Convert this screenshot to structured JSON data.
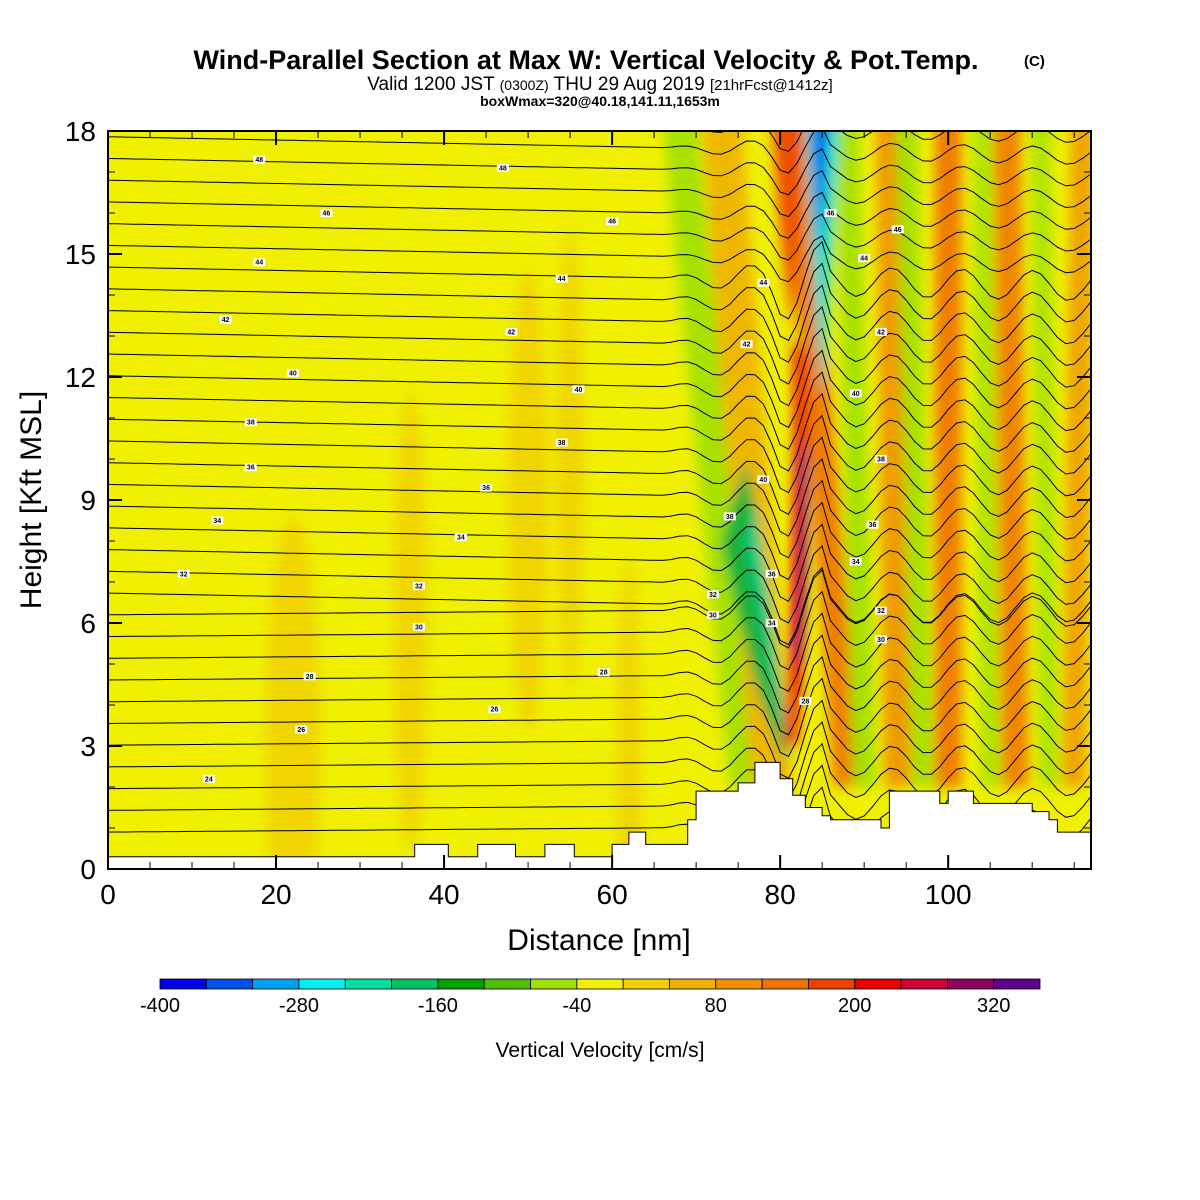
{
  "chart_data": {
    "type": "heatmap",
    "title": "Wind-Parallel Section at Max W: Vertical Velocity & Pot.Temp.",
    "title_mark": "(C)",
    "subtitle": {
      "valid": "Valid 1200 JST",
      "utc": "(0300Z)",
      "date": "THU 29 Aug 2019",
      "fcst": "[21hrFcst@1412z]"
    },
    "subtitle2": "boxWmax=320@40.18,141.11,1653m",
    "xlabel": "Distance [nm]",
    "ylabel": "Height [Kft MSL]",
    "xlim": [
      0,
      117
    ],
    "ylim": [
      0,
      18
    ],
    "xticks": [
      0,
      20,
      40,
      60,
      80,
      100
    ],
    "yticks": [
      0,
      3,
      6,
      9,
      12,
      15,
      18
    ],
    "colorbar": {
      "label": "Vertical Velocity [cm/s]",
      "tick_labels": [
        "-400",
        "-280",
        "-160",
        "-40",
        "80",
        "200",
        "320"
      ],
      "tick_values": [
        -400,
        -280,
        -160,
        -40,
        80,
        200,
        320
      ],
      "colors": [
        "#0000f0",
        "#0050f0",
        "#00a0f0",
        "#00f0f0",
        "#00e0a0",
        "#00c060",
        "#00a000",
        "#50c000",
        "#a0e000",
        "#f0f000",
        "#f0d000",
        "#f0b000",
        "#f09000",
        "#f07000",
        "#f04000",
        "#f00000",
        "#d00030",
        "#900060",
        "#600090"
      ]
    },
    "velocity_features": [
      {
        "x": 82.5,
        "y": 8,
        "value": 320
      },
      {
        "x": 84.5,
        "y": 16,
        "value": -380
      },
      {
        "x": 78,
        "y": 6,
        "value": -180
      },
      {
        "x": 72,
        "y": 15,
        "value": -60
      }
    ],
    "theta_contour_labels": [
      {
        "x": 12,
        "y": 2.2,
        "text": "24"
      },
      {
        "x": 23,
        "y": 3.4,
        "text": "26"
      },
      {
        "x": 24,
        "y": 4.7,
        "text": "28"
      },
      {
        "x": 46,
        "y": 3.9,
        "text": "26"
      },
      {
        "x": 59,
        "y": 4.8,
        "text": "28"
      },
      {
        "x": 37,
        "y": 5.9,
        "text": "30"
      },
      {
        "x": 37,
        "y": 6.9,
        "text": "32"
      },
      {
        "x": 9,
        "y": 7.2,
        "text": "32"
      },
      {
        "x": 13,
        "y": 8.5,
        "text": "34"
      },
      {
        "x": 42,
        "y": 8.1,
        "text": "34"
      },
      {
        "x": 17,
        "y": 9.8,
        "text": "36"
      },
      {
        "x": 45,
        "y": 9.3,
        "text": "36"
      },
      {
        "x": 17,
        "y": 10.9,
        "text": "38"
      },
      {
        "x": 54,
        "y": 10.4,
        "text": "38"
      },
      {
        "x": 22,
        "y": 12.1,
        "text": "40"
      },
      {
        "x": 56,
        "y": 11.7,
        "text": "40"
      },
      {
        "x": 14,
        "y": 13.4,
        "text": "42"
      },
      {
        "x": 48,
        "y": 13.1,
        "text": "42"
      },
      {
        "x": 18,
        "y": 14.8,
        "text": "44"
      },
      {
        "x": 54,
        "y": 14.4,
        "text": "44"
      },
      {
        "x": 26,
        "y": 16.0,
        "text": "46"
      },
      {
        "x": 60,
        "y": 15.8,
        "text": "46"
      },
      {
        "x": 18,
        "y": 17.3,
        "text": "48"
      },
      {
        "x": 47,
        "y": 17.1,
        "text": "48"
      },
      {
        "x": 72,
        "y": 6.2,
        "text": "30"
      },
      {
        "x": 72,
        "y": 6.7,
        "text": "32"
      },
      {
        "x": 79,
        "y": 7.2,
        "text": "36"
      },
      {
        "x": 74,
        "y": 8.6,
        "text": "38"
      },
      {
        "x": 79,
        "y": 6.0,
        "text": "34"
      },
      {
        "x": 78,
        "y": 9.5,
        "text": "40"
      },
      {
        "x": 76,
        "y": 12.8,
        "text": "42"
      },
      {
        "x": 78,
        "y": 14.3,
        "text": "44"
      },
      {
        "x": 86,
        "y": 16.0,
        "text": "46"
      },
      {
        "x": 83,
        "y": 4.1,
        "text": "28"
      },
      {
        "x": 89,
        "y": 7.5,
        "text": "34"
      },
      {
        "x": 92,
        "y": 5.6,
        "text": "30"
      },
      {
        "x": 92,
        "y": 6.3,
        "text": "32"
      },
      {
        "x": 91,
        "y": 8.4,
        "text": "36"
      },
      {
        "x": 92,
        "y": 10.0,
        "text": "38"
      },
      {
        "x": 89,
        "y": 11.6,
        "text": "40"
      },
      {
        "x": 92,
        "y": 13.1,
        "text": "42"
      },
      {
        "x": 90,
        "y": 14.9,
        "text": "44"
      },
      {
        "x": 94,
        "y": 15.6,
        "text": "46"
      }
    ],
    "terrain": [
      [
        0,
        0.3
      ],
      [
        36.5,
        0.3
      ],
      [
        36.5,
        0.6
      ],
      [
        40.5,
        0.6
      ],
      [
        40.5,
        0.3
      ],
      [
        44,
        0.3
      ],
      [
        44,
        0.6
      ],
      [
        48.5,
        0.6
      ],
      [
        48.5,
        0.3
      ],
      [
        52,
        0.3
      ],
      [
        52,
        0.6
      ],
      [
        55.5,
        0.6
      ],
      [
        55.5,
        0.3
      ],
      [
        60,
        0.3
      ],
      [
        60,
        0.6
      ],
      [
        62,
        0.6
      ],
      [
        62,
        0.9
      ],
      [
        64,
        0.9
      ],
      [
        64,
        0.6
      ],
      [
        69,
        0.6
      ],
      [
        69,
        1.2
      ],
      [
        70,
        1.2
      ],
      [
        70,
        1.9
      ],
      [
        75,
        1.9
      ],
      [
        75,
        2.1
      ],
      [
        77,
        2.1
      ],
      [
        77,
        2.6
      ],
      [
        80,
        2.6
      ],
      [
        80,
        2.2
      ],
      [
        81.5,
        2.2
      ],
      [
        81.5,
        1.8
      ],
      [
        83,
        1.8
      ],
      [
        83,
        1.5
      ],
      [
        85,
        1.5
      ],
      [
        85,
        1.3
      ],
      [
        86,
        1.3
      ],
      [
        86,
        1.2
      ],
      [
        92,
        1.2
      ],
      [
        92,
        1.0
      ],
      [
        93,
        1.0
      ],
      [
        93,
        1.9
      ],
      [
        99,
        1.9
      ],
      [
        99,
        1.6
      ],
      [
        100,
        1.6
      ],
      [
        100,
        1.9
      ],
      [
        103,
        1.9
      ],
      [
        103,
        1.6
      ],
      [
        110,
        1.6
      ],
      [
        110,
        1.4
      ],
      [
        112,
        1.4
      ],
      [
        112,
        1.2
      ],
      [
        113,
        1.2
      ],
      [
        113,
        0.9
      ],
      [
        117,
        0.9
      ]
    ]
  }
}
